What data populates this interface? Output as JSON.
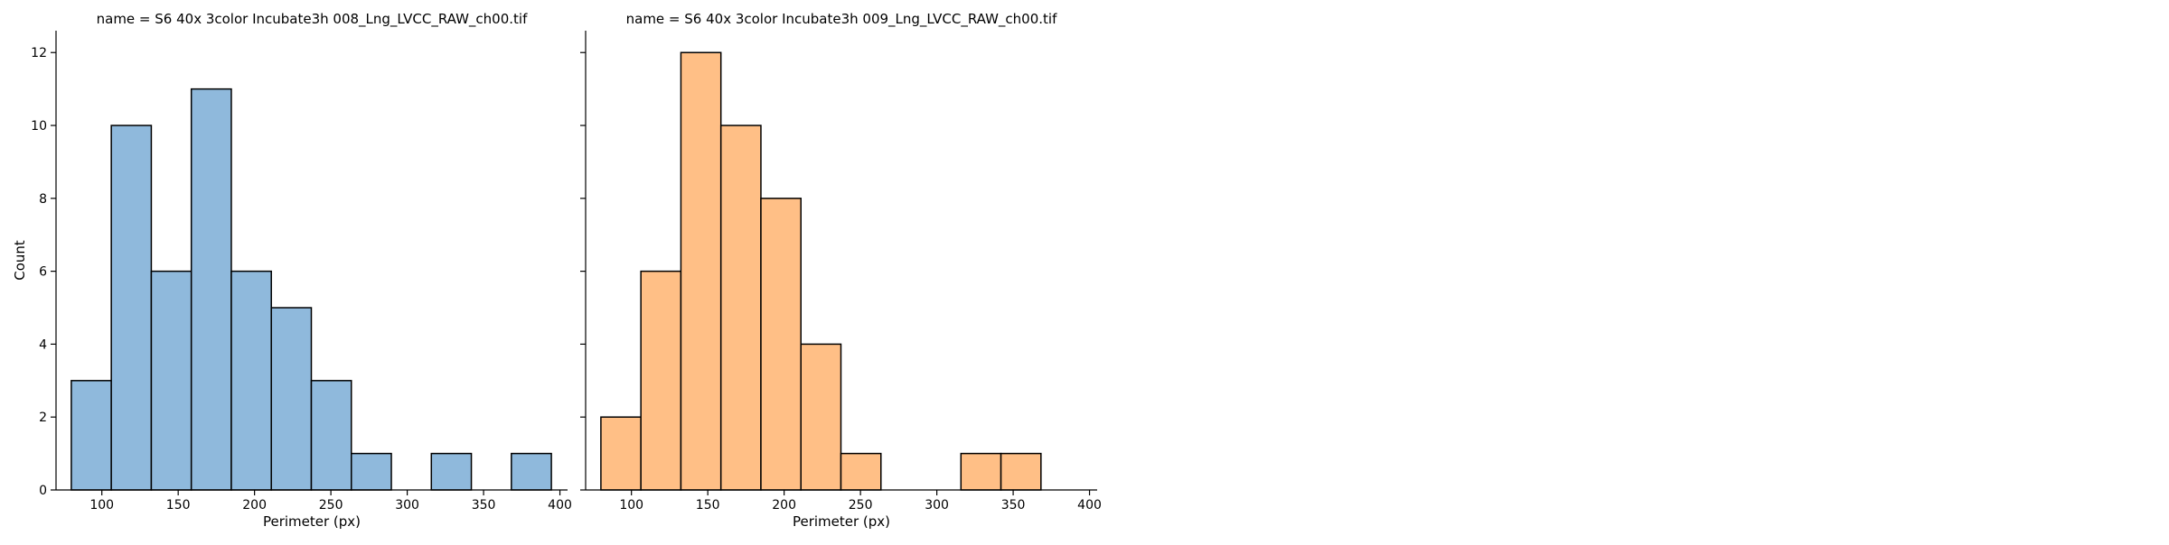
{
  "chart_data": {
    "type": "bar",
    "shared": {
      "xlabel": "Perimeter (px)",
      "ylabel": "Count",
      "xlim": [
        70,
        405
      ],
      "ylim": [
        0,
        12.6
      ],
      "xticks": [
        100,
        150,
        200,
        250,
        300,
        350,
        400
      ],
      "yticks": [
        0,
        2,
        4,
        6,
        8,
        10,
        12
      ],
      "grid": false,
      "legend": "none"
    },
    "panels": [
      {
        "title": "name = S6 40x 3color Incubate3h 008_Lng_LVCC_RAW_ch00.tif",
        "color": "#8fb9dc",
        "bins": [
          {
            "x0": 80,
            "x1": 106.2,
            "count": 3
          },
          {
            "x0": 106.2,
            "x1": 132.4,
            "count": 10
          },
          {
            "x0": 132.4,
            "x1": 158.6,
            "count": 6
          },
          {
            "x0": 158.6,
            "x1": 184.8,
            "count": 11
          },
          {
            "x0": 184.8,
            "x1": 211.0,
            "count": 6
          },
          {
            "x0": 211.0,
            "x1": 237.2,
            "count": 5
          },
          {
            "x0": 237.2,
            "x1": 263.4,
            "count": 3
          },
          {
            "x0": 263.4,
            "x1": 289.6,
            "count": 1
          },
          {
            "x0": 289.6,
            "x1": 315.8,
            "count": 0
          },
          {
            "x0": 315.8,
            "x1": 342.0,
            "count": 1
          },
          {
            "x0": 342.0,
            "x1": 368.2,
            "count": 0
          },
          {
            "x0": 368.2,
            "x1": 394.4,
            "count": 1
          }
        ]
      },
      {
        "title": "name = S6 40x 3color Incubate3h 009_Lng_LVCC_RAW_ch00.tif",
        "color": "#ffbf86",
        "bins": [
          {
            "x0": 80,
            "x1": 106.2,
            "count": 2
          },
          {
            "x0": 106.2,
            "x1": 132.4,
            "count": 6
          },
          {
            "x0": 132.4,
            "x1": 158.6,
            "count": 12
          },
          {
            "x0": 158.6,
            "x1": 184.8,
            "count": 10
          },
          {
            "x0": 184.8,
            "x1": 211.0,
            "count": 8
          },
          {
            "x0": 211.0,
            "x1": 237.2,
            "count": 4
          },
          {
            "x0": 237.2,
            "x1": 263.4,
            "count": 1
          },
          {
            "x0": 263.4,
            "x1": 289.6,
            "count": 0
          },
          {
            "x0": 289.6,
            "x1": 315.8,
            "count": 0
          },
          {
            "x0": 315.8,
            "x1": 342.0,
            "count": 1
          },
          {
            "x0": 342.0,
            "x1": 368.2,
            "count": 1
          }
        ]
      }
    ]
  }
}
